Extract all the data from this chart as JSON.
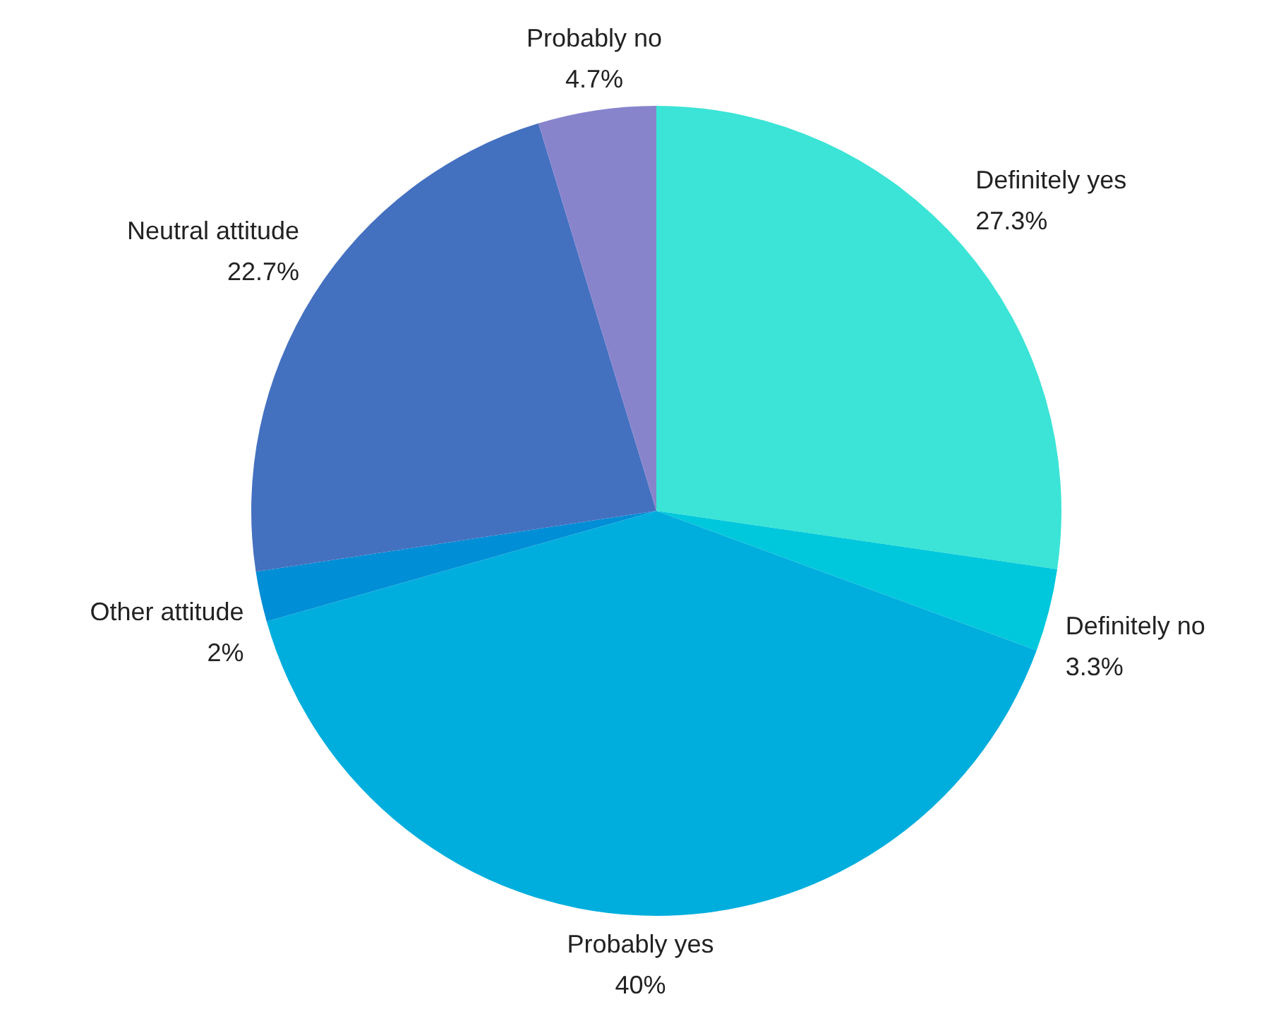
{
  "chart_data": {
    "type": "pie",
    "categories": [
      "Definitely yes",
      "Definitely no",
      "Probably yes",
      "Other attitude",
      "Neutral attitude",
      "Probably no"
    ],
    "values": [
      27.3,
      3.3,
      40,
      2,
      22.7,
      4.7
    ],
    "value_labels": [
      "27.3%",
      "3.3%",
      "40%",
      "2%",
      "22.7%",
      "4.7%"
    ],
    "colors": [
      "#3be4d6",
      "#00c8dc",
      "#00aedd",
      "#008ed6",
      "#4470c0",
      "#8884cc"
    ]
  }
}
